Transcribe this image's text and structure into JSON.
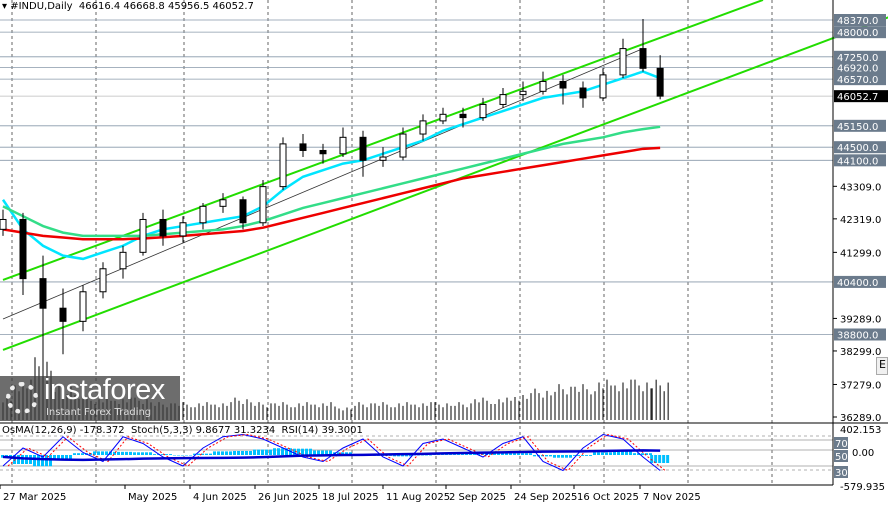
{
  "header": {
    "symbol": "#INDU,Daily",
    "open": "46616.4",
    "high": "46668.8",
    "low": "45956.5",
    "close": "46052.7"
  },
  "indicators": {
    "label": "OsMA(12,26,9) -178.372  Stoch(5,3,3) 9.8677 31.3234  RSI(14) 39.3001",
    "axis_max": "402.153",
    "axis_min": "-579.935",
    "levels": [
      "80",
      "70",
      "50",
      "30",
      "20"
    ],
    "zero": "0.00"
  },
  "logo": {
    "name": "instaforex",
    "tagline": "Instant Forex Trading"
  },
  "side_tab": "E",
  "colors": {
    "candles": "#000000",
    "ma_fast": "#00e5ff",
    "ma_mid": "#33dd88",
    "ma_slow": "#ee0000",
    "channel": "#22dd00",
    "level_label_bg": "#6b7b8c",
    "osma": "#00bfff",
    "stoch_main": "#0000ff",
    "stoch_signal": "#ff0000",
    "rsi": "#0000cc"
  },
  "chart_data": {
    "type": "candlestick",
    "title": "#INDU,Daily",
    "ylim": [
      36289,
      49000
    ],
    "y_ticks": [
      "43309.0",
      "42319.0",
      "41299.0",
      "40400.0",
      "39289.0",
      "38800.0",
      "38299.0",
      "37279.0",
      "36289.0"
    ],
    "level_lines": [
      "48370.0",
      "48000.0",
      "47250.0",
      "46920.0",
      "46570.0",
      "45150.0",
      "44500.0",
      "44100.0",
      "40400.0",
      "38800.0"
    ],
    "current_price": "46052.7",
    "x_ticks": [
      "27 Mar 2025",
      "May 2025",
      "4 Jun 2025",
      "26 Jun 2025",
      "18 Jul 2025",
      "11 Aug 2025",
      "2 Sep 2025",
      "24 Sep 2025",
      "16 Oct 2025",
      "7 Nov 2025"
    ],
    "dates": [
      "2025-03-27",
      "2025-04-03",
      "2025-04-10",
      "2025-04-17",
      "2025-04-24",
      "2025-05-01",
      "2025-05-08",
      "2025-05-15",
      "2025-05-22",
      "2025-05-29",
      "2025-06-05",
      "2025-06-12",
      "2025-06-19",
      "2025-06-26",
      "2025-07-03",
      "2025-07-10",
      "2025-07-17",
      "2025-07-24",
      "2025-07-31",
      "2025-08-07",
      "2025-08-14",
      "2025-08-21",
      "2025-08-28",
      "2025-09-04",
      "2025-09-11",
      "2025-09-18",
      "2025-09-25",
      "2025-10-02",
      "2025-10-09",
      "2025-10-16",
      "2025-10-23",
      "2025-10-30",
      "2025-11-06",
      "2025-11-12"
    ],
    "ohlc": [
      [
        42000,
        42600,
        41800,
        42300
      ],
      [
        42300,
        42500,
        40000,
        40500
      ],
      [
        40500,
        41200,
        37100,
        39600
      ],
      [
        39600,
        40200,
        38200,
        39200
      ],
      [
        39200,
        40300,
        38900,
        40100
      ],
      [
        40100,
        41000,
        39900,
        40800
      ],
      [
        40800,
        41500,
        40500,
        41300
      ],
      [
        41300,
        42500,
        41200,
        42300
      ],
      [
        42300,
        42600,
        41500,
        41800
      ],
      [
        41800,
        42400,
        41600,
        42200
      ],
      [
        42200,
        42800,
        42000,
        42700
      ],
      [
        42700,
        43100,
        42500,
        42900
      ],
      [
        42900,
        43000,
        42000,
        42200
      ],
      [
        42200,
        43500,
        42100,
        43300
      ],
      [
        43300,
        44800,
        43200,
        44600
      ],
      [
        44600,
        44900,
        44200,
        44400
      ],
      [
        44400,
        44600,
        44000,
        44300
      ],
      [
        44300,
        45100,
        44200,
        44800
      ],
      [
        44800,
        45000,
        43600,
        44100
      ],
      [
        44100,
        44500,
        43900,
        44200
      ],
      [
        44200,
        45100,
        44100,
        44900
      ],
      [
        44900,
        45500,
        44700,
        45300
      ],
      [
        45300,
        45700,
        45200,
        45500
      ],
      [
        45500,
        45700,
        45100,
        45400
      ],
      [
        45400,
        46000,
        45300,
        45800
      ],
      [
        45800,
        46300,
        45700,
        46100
      ],
      [
        46100,
        46500,
        45900,
        46200
      ],
      [
        46200,
        46800,
        46100,
        46500
      ],
      [
        46500,
        46700,
        45800,
        46300
      ],
      [
        46300,
        46500,
        45700,
        46000
      ],
      [
        46000,
        46900,
        45900,
        46700
      ],
      [
        46700,
        47800,
        46600,
        47500
      ],
      [
        47500,
        48400,
        46800,
        46900
      ],
      [
        46900,
        47300,
        45956,
        46053
      ]
    ],
    "volume": [
      5,
      9,
      14,
      8,
      6,
      5,
      5,
      5,
      4,
      4,
      4,
      4,
      5,
      4,
      4,
      4,
      4,
      3,
      4,
      4,
      4,
      4,
      4,
      4,
      5,
      5,
      6,
      7,
      8,
      8,
      9,
      9,
      9,
      9
    ],
    "series": [
      {
        "name": "MA fast",
        "color": "#00e5ff",
        "values": [
          42900,
          42000,
          41500,
          41200,
          41100,
          41300,
          41500,
          41800,
          42000,
          42100,
          42200,
          42300,
          42400,
          42700,
          43200,
          43600,
          43800,
          44000,
          44100,
          44300,
          44500,
          44700,
          45000,
          45200,
          45400,
          45600,
          45800,
          46000,
          46100,
          46200,
          46400,
          46600,
          46800,
          46600
        ]
      },
      {
        "name": "MA mid",
        "color": "#33dd88",
        "values": [
          42700,
          42400,
          42100,
          41900,
          41800,
          41800,
          41800,
          41800,
          41850,
          41900,
          41950,
          42000,
          42100,
          42250,
          42450,
          42650,
          42800,
          42950,
          43100,
          43250,
          43400,
          43550,
          43700,
          43850,
          44000,
          44150,
          44300,
          44450,
          44600,
          44700,
          44800,
          44950,
          45050,
          45120
        ]
      },
      {
        "name": "MA slow",
        "color": "#ee0000",
        "values": [
          42000,
          41900,
          41800,
          41750,
          41700,
          41700,
          41700,
          41720,
          41760,
          41800,
          41850,
          41900,
          41950,
          42050,
          42200,
          42350,
          42500,
          42650,
          42800,
          42950,
          43100,
          43250,
          43400,
          43550,
          43650,
          43750,
          43850,
          43950,
          44050,
          44150,
          44250,
          44350,
          44450,
          44480
        ]
      }
    ],
    "channel": {
      "upper": [
        [
          "2025-03-27",
          40460
        ],
        [
          "2025-12-18",
          48980
        ]
      ],
      "lower": [
        [
          "2025-03-27",
          38330
        ],
        [
          "2026-02-02",
          48520
        ]
      ],
      "mid": [
        [
          "2025-03-27",
          39270
        ],
        [
          "2025-11-06",
          47500
        ]
      ]
    },
    "oscillator": {
      "osma": [
        -60,
        -200,
        -250,
        -120,
        40,
        80,
        70,
        60,
        20,
        -10,
        30,
        80,
        90,
        120,
        150,
        140,
        100,
        60,
        20,
        -20,
        -30,
        -10,
        20,
        40,
        50,
        60,
        40,
        -30,
        -60,
        -20,
        60,
        110,
        40,
        -178
      ],
      "stoch": [
        20,
        60,
        40,
        85,
        50,
        30,
        85,
        70,
        40,
        20,
        60,
        85,
        90,
        80,
        60,
        40,
        30,
        60,
        80,
        40,
        20,
        70,
        80,
        60,
        40,
        70,
        85,
        30,
        10,
        60,
        90,
        80,
        40,
        10
      ]
    }
  }
}
